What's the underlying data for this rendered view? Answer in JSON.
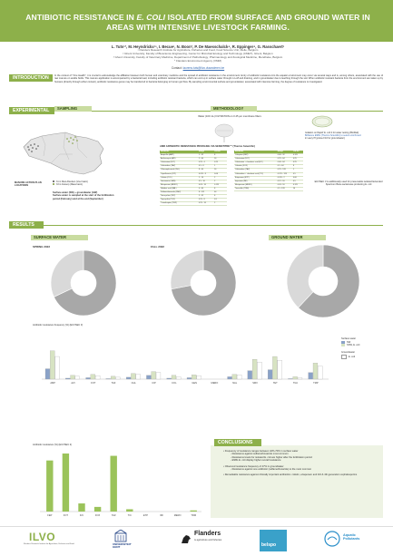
{
  "title": {
    "line1_a": "ANTIBIOTIC RESISTANCE IN ",
    "line1_italic": "E. COLI",
    "line1_b": " ISOLATED FROM SURFACE AND GROUND WATER IN",
    "line2": "AREAS WITH INTENSIVE LIVESTOCK FARMING."
  },
  "authors": "L. Tuts¹², M. Heyndrickx¹³, I. Becue¹, N. Boon², P. De Maesschalck⁴, R. Eppinger⁴, G. Rasschaert¹",
  "affiliations": [
    "¹ Flanders Research Institute for Agriculture, Fisheries and Food, Food Science Unit, Melle, Belgium",
    "² Ghent University, Faculty of Bioscience Engineering, Center for Microbial Ecology and Technology (CMET), Ghent, Belgium",
    "³ Ghent University, Faculty of Veterinary Medicine, Department of Pathobiology, Pharmacology and Zoological Medicine, Merelbeke, Belgium",
    "⁴ Flanders Environment Agency (VMM)"
  ],
  "contact_label": "Contact:",
  "contact_email": "laurens.tuts@ilvo.vlaanderen.be",
  "sections": {
    "introduction": "INTRODUCTION",
    "experimental": "EXPERIMENTAL",
    "sampling": "SAMPLING",
    "methodology": "METHODOLOGY",
    "results": "RESULTS",
    "conclusions": "CONCLUSIONS"
  },
  "intro_text": "In the context of \"One Health\", it is crucial to acknowledge the affiliation between both human and veterinary medicine and the spread of antibiotic resistance in the environment. Entry of antibiotic resistance into the aquatic environment may occur via several ways and is, among others, associated with the use of raw manure on arable fields. This manure application is accompanied by a bacterial load, including antibiotic resistant bacteria, which can end up in surface water through run-off and draining, and in groundwater due to leaching through the soil. When antibiotic resistant bacteria from the environment are taken up by humans (directly through either contact), antibiotic resistance genes may be transferred to bacteria belonging to human gut flora. By sampling environmental surface and groundwater, associated with intensive farming, the degree of resistance is investigated.",
  "sampling": {
    "legend_title": "MANURE ACTION PLAN LOCATIONS",
    "legend_1": "31 in West-Flanders (Voer basin)",
    "legend_2": "33 in Antwerp (Maas basin)",
    "note_1": "Surface water (SW) + groundwater (GW)",
    "note_2": "Surface water is sampled at the start of the fertilization period (February) and at the end (September)"
  },
  "methodology": {
    "step1": "Water (100 mL) FILTRATION on 0.45 µm membrane filters",
    "step2a": "Isolation on Rapid' E. coli 2 for water testing (BioRad)",
    "step2b": "Brilliance ESBL (Thermo Scientific) to select enrichment",
    "step2c": "in Lauryl Tryptose F10 for groundwater)",
    "profiling": "AMR ANTIBIOTIC RESISTANCE PROFILING VIA SENSITITRE™ (Thermo Scientific)",
    "esbl_note": "EUVSEC 3 is additionally used for presumable isolated Extended Spectrum Beta-Lactamase producing E. coli"
  },
  "table_left": {
    "headers": [
      "Antibiotic",
      "Range",
      "Cut-off"
    ],
    "rows": [
      [
        "Ampicillin (AMP)",
        "1 - 32",
        "8"
      ],
      [
        "Azithromycin (AZI)",
        "2 - 64",
        "16"
      ],
      [
        "Cefotaxime (FOT)",
        "0.25 - 4",
        "0.25"
      ],
      [
        "Ceftazidime (TAZ)",
        "0.5 - 8",
        "1"
      ],
      [
        "Chloramphenicol (CHL)",
        "8 - 64",
        "16"
      ],
      [
        "Ciprofloxacin (CIP)",
        "0.015 - 8",
        "0.06"
      ],
      [
        "Colistin (COL)",
        "1 - 16",
        "2"
      ],
      [
        "Gentamicin (GEN)",
        "0.5 - 16",
        "2"
      ],
      [
        "Meropenem (MERO)",
        "0.03 - 16",
        "0.125"
      ],
      [
        "Nalidixic acid (NAL)",
        "4 - 64",
        "8"
      ],
      [
        "Sulfamethoxazole (SMX)",
        "8 - 512",
        "64"
      ],
      [
        "Tetracycline (TET)",
        "2 - 32",
        "8"
      ],
      [
        "Tigecycline (TGC)",
        "0.25 - 8",
        "0.5"
      ],
      [
        "Trimethoprim (TMP)",
        "0.25 - 16",
        "2"
      ]
    ]
  },
  "table_right": {
    "headers": [
      "Antibiotic",
      "Range",
      "Cut-off"
    ],
    "rows": [
      [
        "Cefepime (FEP)",
        "0.06 - 32",
        "0.125"
      ],
      [
        "Cefotaxime (FOT)",
        "0.25 - 64",
        "0.25"
      ],
      [
        "Cefotaxime + clavulanic acid (F/C)",
        "0.06 - 64",
        "0.25"
      ],
      [
        "Cefoxitin (FOX)",
        "0.5 - 64",
        "8"
      ],
      [
        "Ceftazidime (TAZ)",
        "0.25 - 128",
        "1"
      ],
      [
        "Ceftazidime + clavulanic acid (T/C)",
        "0.125 - 128",
        "0.5"
      ],
      [
        "Ertapenem (ETP)",
        "0.015 - 2",
        "0.06"
      ],
      [
        "Imipenem (IMI)",
        "0.12 - 16",
        "0.5"
      ],
      [
        "Meropenem (MERO)",
        "0.03 - 16",
        "0.125"
      ],
      [
        "Temocillin (TRM)",
        "0.5 - 128",
        "16"
      ]
    ]
  },
  "results": {
    "surface_water": "SURFACE WATER",
    "ground_water": "GROUND WATER",
    "spring": "SPRING 2022",
    "fall": "FALL 2022"
  },
  "chart1": {
    "title": "Antibiotic resistance frequency (%) (EUVSEC 3)",
    "legend_sw": "Surface water",
    "legend_spring": "SW",
    "legend_fall": "SSW, E. coli",
    "legend_gw": "Groundwater",
    "legend_gw2": "E. coli",
    "colors": {
      "spring": "#8aa2c8",
      "fall": "#d7e3c2",
      "gw": "#ffffff"
    }
  },
  "chart2": {
    "title": "Antibiotic resistance (%) (EUVSEC 2)",
    "color": "#9bc35a"
  },
  "chart_data": [
    {
      "type": "bar",
      "title": "Antibiotic resistance frequency (%) (EUVSEC 3)",
      "categories": [
        "AMP",
        "AZI",
        "FOT",
        "TAZ",
        "CHL",
        "CIP",
        "COL",
        "GEN",
        "MERO",
        "NAL",
        "SMX",
        "TET",
        "TGC",
        "TMP"
      ],
      "series": [
        {
          "name": "SW",
          "values": [
            22,
            2,
            3,
            1,
            4,
            8,
            2,
            3,
            0,
            5,
            18,
            20,
            1,
            14
          ]
        },
        {
          "name": "SSW, E. coli",
          "values": [
            60,
            8,
            10,
            6,
            12,
            16,
            8,
            9,
            0,
            10,
            42,
            48,
            5,
            34
          ]
        },
        {
          "name": "E. coli",
          "values": [
            48,
            6,
            7,
            4,
            10,
            14,
            5,
            7,
            0,
            9,
            36,
            40,
            3,
            28
          ]
        }
      ],
      "ylim": [
        0,
        100
      ]
    },
    {
      "type": "bar",
      "title": "Antibiotic resistance (%) (EUVSEC 2)",
      "categories": [
        "FEP",
        "FOT",
        "F/C",
        "FOX",
        "TAZ",
        "T/C",
        "ETP",
        "IMI",
        "MERO",
        "TRM"
      ],
      "values": [
        88,
        100,
        14,
        8,
        96,
        4,
        0,
        0,
        0,
        2
      ],
      "ylim": [
        0,
        100
      ]
    },
    {
      "type": "pie",
      "title": "SURFACE WATER - SPRING 2022",
      "values": [
        68,
        32
      ],
      "colors": [
        "#a8a8a8",
        "#d9d9d9"
      ]
    },
    {
      "type": "pie",
      "title": "SURFACE WATER - FALL 2022",
      "values": [
        72,
        28
      ],
      "colors": [
        "#a8a8a8",
        "#d9d9d9"
      ]
    },
    {
      "type": "pie",
      "title": "GROUND WATER",
      "values": [
        62,
        38
      ],
      "colors": [
        "#a8a8a8",
        "#d9d9d9"
      ]
    }
  ],
  "conclusions": [
    "Frequency of resistance ranges between 42%-70% in surface water",
    "- Resistance against sulfamethoxazole most common",
    "- Resistance levels for isolated E. coli are higher after the fertilization period",
    "- ESBL E. coli display higher overall resistance",
    "Observed resistance frequency of 47% in groundwater",
    "- Resistance against one antibiotic (sulfamethoxazole) is the most common",
    "Remarkable resistance against clinically important antibiotics: colistin, ertapenem and 3rd & 4th generation cephalosporins"
  ],
  "logos": {
    "ilvo": "ILVO",
    "ilvo_sub": "Flanders Research Institute for Agriculture, Fisheries and Food",
    "ugent_1": "UNIVERSITEIT",
    "ugent_2": "GENT",
    "flanders_1": "Flanders",
    "flanders_2": "is agriculture and fisheries",
    "belspo": "belspo",
    "aquatic_1": "Aquatic",
    "aquatic_2": "Pollutants"
  }
}
